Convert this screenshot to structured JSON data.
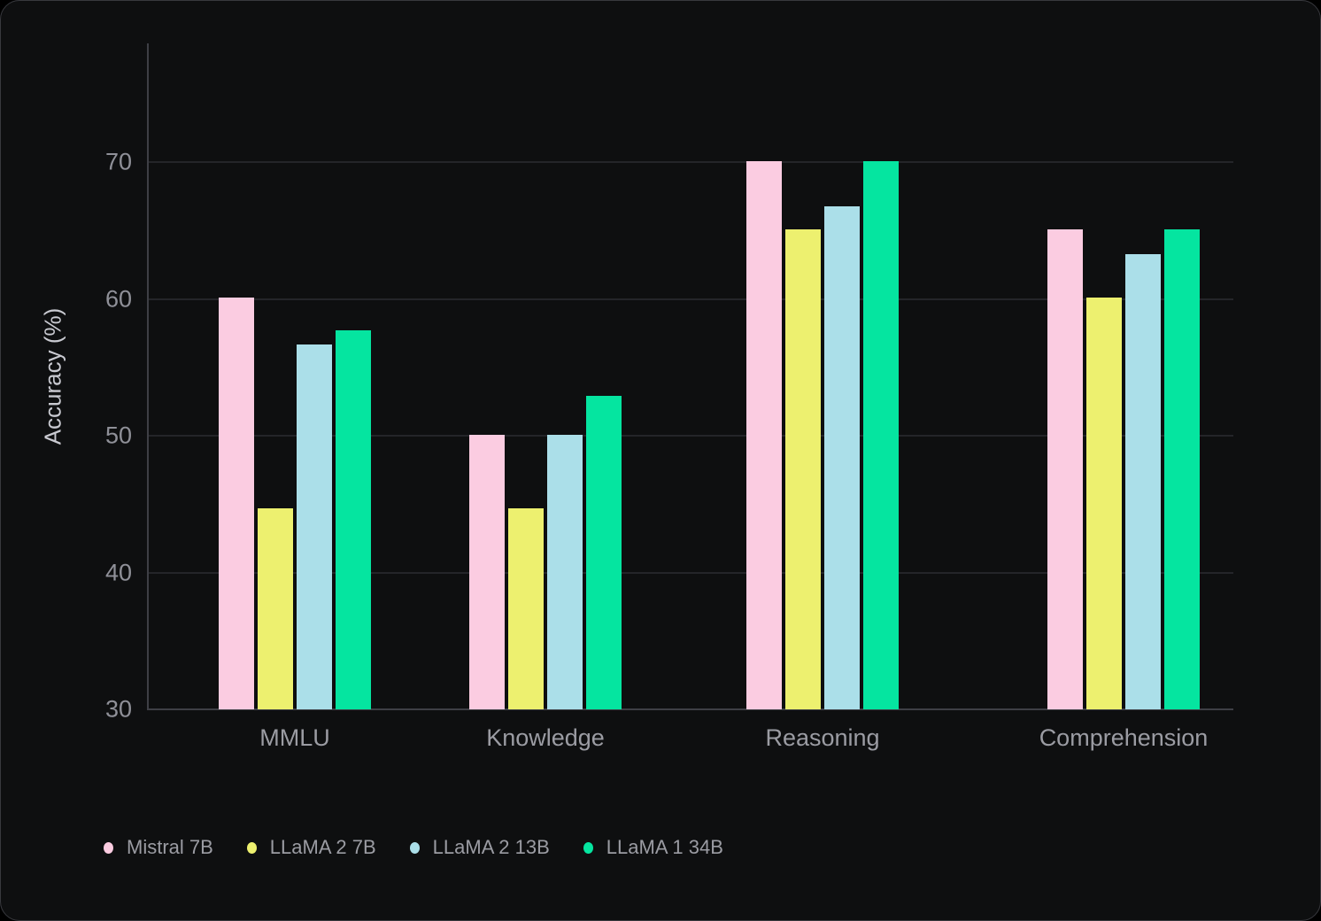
{
  "page": {
    "background": "#000000",
    "card_background": "#0e0f10",
    "gridline_color": "#242529",
    "axis_color": "#3e3f45",
    "tick_text_color": "#8f9098",
    "label_text_color": "#9b9ca3",
    "axis_title_color": "#c9cad1"
  },
  "chart_data": {
    "type": "bar",
    "title": "",
    "xlabel": "",
    "ylabel": "Accuracy (%)",
    "categories": [
      "MMLU",
      "Knowledge",
      "Reasoning",
      "Comprehension"
    ],
    "series": [
      {
        "name": "Mistral 7B",
        "color": "#fbcce1",
        "values": [
          60.1,
          50.1,
          70.1,
          65.1
        ]
      },
      {
        "name": "LLaMA 2 7B",
        "color": "#edf06f",
        "values": [
          44.7,
          44.7,
          65.1,
          60.1
        ]
      },
      {
        "name": "LLaMA 2 13B",
        "color": "#abdfe9",
        "values": [
          56.7,
          50.1,
          66.8,
          63.3
        ]
      },
      {
        "name": "LLaMA 1 34B",
        "color": "#05e5a0",
        "values": [
          57.7,
          52.9,
          70.1,
          65.1
        ]
      }
    ],
    "yticks": [
      30,
      40,
      50,
      60,
      70
    ],
    "ylim": [
      30,
      78.7
    ],
    "grid": "horizontal-only",
    "legend_position": "bottom-left"
  }
}
